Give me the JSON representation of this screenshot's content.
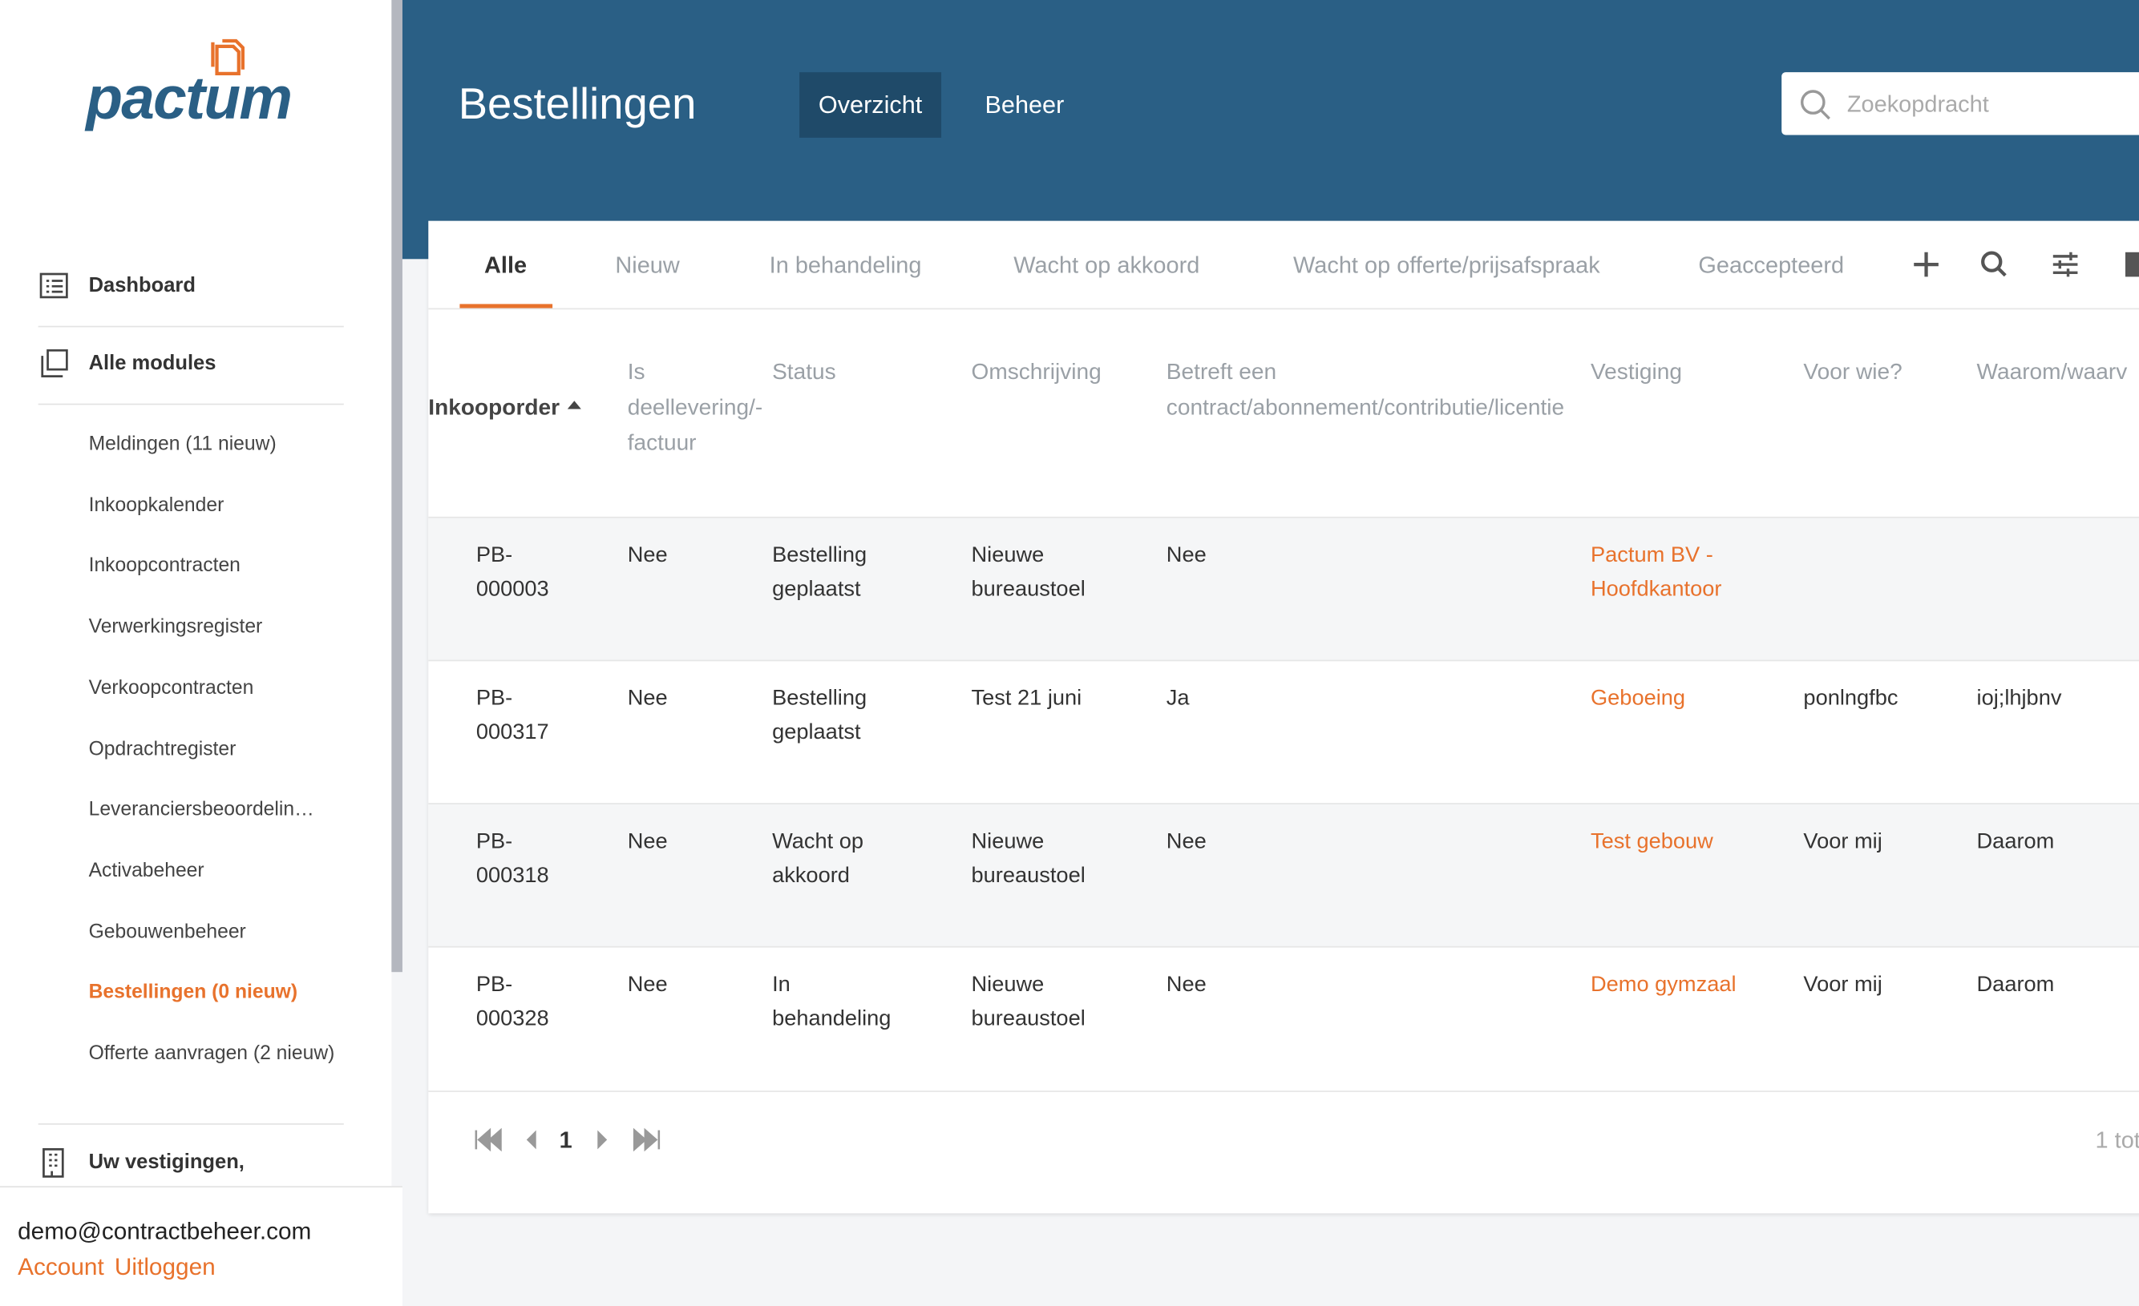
{
  "sidebar": {
    "logo": "pactum",
    "nav": [
      "Dashboard",
      "Alle modules"
    ],
    "modules": [
      "Meldingen (11 nieuw)",
      "Inkoopkalender",
      "Inkoopcontracten",
      "Verwerkingsregister",
      "Verkoopcontracten",
      "Opdrachtregister",
      "Leveranciersbeoordelin…",
      "Activabeheer",
      "Gebouwenbeheer",
      "Bestellingen (0 nieuw)",
      "Offerte aanvragen (2 nieuw)"
    ],
    "active_module": 9,
    "section": "Uw vestigingen,",
    "user": {
      "email": "demo@contractbeheer.com",
      "account": "Account",
      "logout": "Uitloggen"
    }
  },
  "header": {
    "title": "Bestellingen",
    "tabs": [
      "Overzicht",
      "Beheer"
    ],
    "active_tab": 0,
    "search_placeholder": "Zoekopdracht"
  },
  "filter_tabs": {
    "tabs": [
      "Alle",
      "Nieuw",
      "In behandeling",
      "Wacht op akkoord",
      "Wacht op offerte/prijsafspraak",
      "Geaccepteerd"
    ],
    "active": 0
  },
  "table": {
    "columns": [
      "Inkooporder",
      "Is deellevering/-factuur",
      "Status",
      "Omschrijving",
      "Betreft een contract/abonnement/contributie/licentie",
      "Vestiging",
      "Voor wie?",
      "Waarom/waarv"
    ],
    "rows": [
      {
        "inkooporder": "PB-000003",
        "deellevering": "Nee",
        "status": "Bestelling geplaatst",
        "omschrijving": "Nieuwe bureaustoel",
        "betreft": "Nee",
        "vestiging": "Pactum BV - Hoofdkantoor"
      },
      {
        "inkooporder": "PB-000317",
        "deellevering": "Nee",
        "status": "Bestelling geplaatst",
        "omschrijving": "Test 21 juni",
        "betreft": "Ja",
        "vestiging": "Geboeing",
        "voor_wie": "ponlngfbc",
        "waarom": "ioj;lhjbnv"
      },
      {
        "inkooporder": "PB-000318",
        "deellevering": "Nee",
        "status": "Wacht op akkoord",
        "omschrijving": "Nieuwe bureaustoel",
        "betreft": "Nee",
        "vestiging": "Test gebouw",
        "voor_wie": "Voor mij",
        "waarom": "Daarom"
      },
      {
        "inkooporder": "PB-000328",
        "deellevering": "Nee",
        "status": "In behandeling",
        "omschrijving": "Nieuwe bureaustoel",
        "betreft": "Nee",
        "vestiging": "Demo gymzaal",
        "voor_wie": "Voor mij",
        "waarom": "Daarom"
      }
    ]
  },
  "pagination": {
    "page": "1",
    "summary": "1 tot"
  }
}
